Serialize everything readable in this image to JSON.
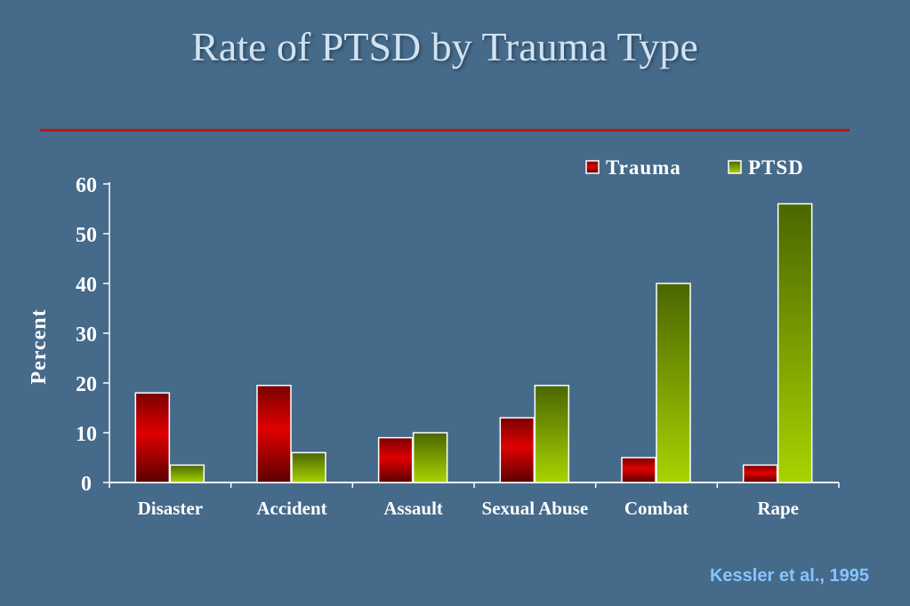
{
  "slide": {
    "title": "Rate of PTSD by Trauma Type",
    "citation": "Kessler et al., 1995",
    "background_color": "#456a8a",
    "rule_color": "#c0101a"
  },
  "chart_data": {
    "type": "bar",
    "categories": [
      "Disaster",
      "Accident",
      "Assault",
      "Sexual Abuse",
      "Combat",
      "Rape"
    ],
    "series": [
      {
        "name": "Trauma",
        "values": [
          18,
          19.5,
          9,
          13,
          5,
          3.5
        ],
        "color": "#cc0000"
      },
      {
        "name": "PTSD",
        "values": [
          3.5,
          6,
          10,
          19.5,
          40,
          56
        ],
        "color": "#99cc00"
      }
    ],
    "title": "",
    "xlabel": "",
    "ylabel": "Percent",
    "ylim": [
      0,
      60
    ],
    "yticks": [
      0,
      10,
      20,
      30,
      40,
      50,
      60
    ],
    "grid": false,
    "legend_position": "top-right"
  }
}
